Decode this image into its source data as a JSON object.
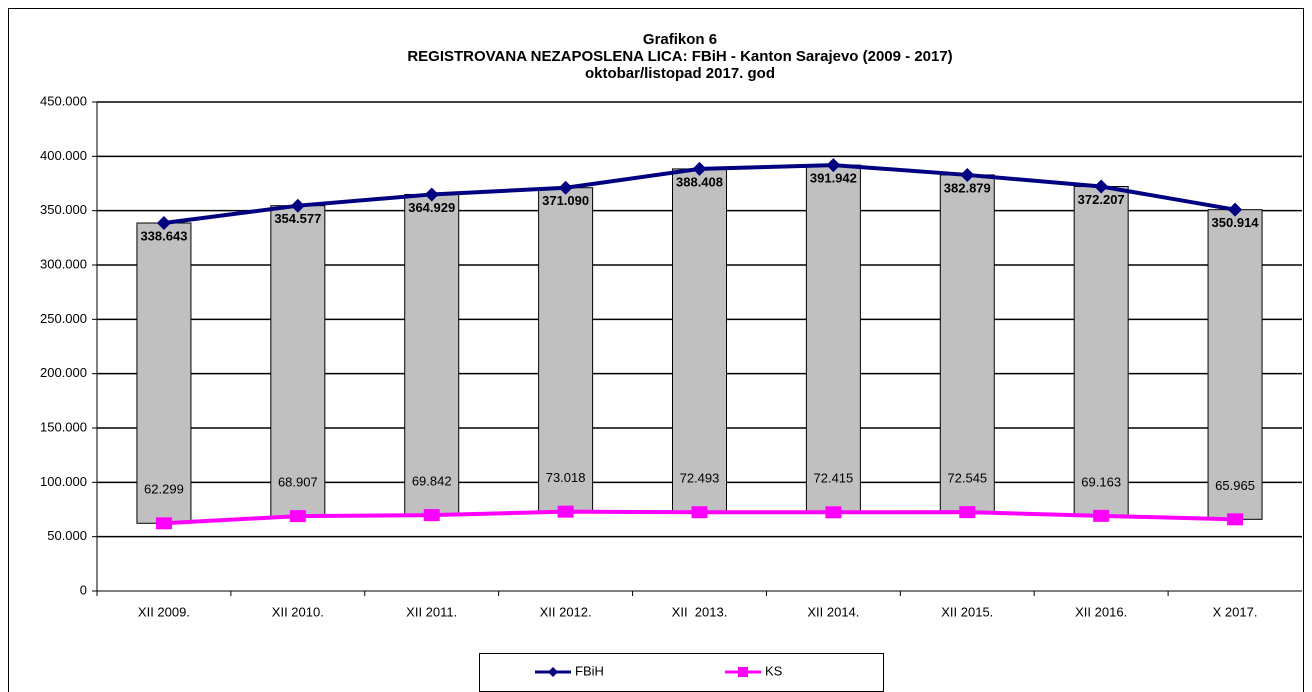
{
  "chart_data": {
    "type": "line",
    "title": [
      "Grafikon 6",
      "REGISTROVANA NEZAPOSLENA LICA: FBiH - Kanton Sarajevo (2009 - 2017)",
      "oktobar/listopad 2017. god"
    ],
    "categories": [
      "XII 2009.",
      "XII 2010.",
      "XII 2011.",
      "XII 2012.",
      "XII  2013.",
      "XII 2014.",
      "XII 2015.",
      "XII 2016.",
      "X 2017."
    ],
    "series": [
      {
        "name": "FBiH",
        "color": "#000080",
        "values": [
          338643,
          354577,
          364929,
          371090,
          388408,
          391942,
          382879,
          372207,
          350914
        ],
        "value_labels": [
          "338.643",
          "354.577",
          "364.929",
          "371.090",
          "388.408",
          "391.942",
          "382.879",
          "372.207",
          "350.914"
        ]
      },
      {
        "name": "KS",
        "color": "#ff00ff",
        "values": [
          62299,
          68907,
          69842,
          73018,
          72493,
          72415,
          72545,
          69163,
          65965
        ],
        "value_labels": [
          "62.299",
          "68.907",
          "69.842",
          "73.018",
          "72.493",
          "72.415",
          "72.545",
          "69.163",
          "65.965"
        ]
      }
    ],
    "ylim": [
      0,
      450000
    ],
    "yticks": [
      0,
      {
        "value": 50000,
        "label": "50.000"
      },
      {
        "value": 100000,
        "label": "100.000"
      },
      {
        "value": 150000,
        "label": "150.000"
      },
      {
        "value": 200000,
        "label": "200.000"
      },
      {
        "value": 250000,
        "label": "250.000"
      },
      {
        "value": 300000,
        "label": "300.000"
      },
      {
        "value": 350000,
        "label": "350.000"
      },
      {
        "value": 400000,
        "label": "400.000"
      },
      {
        "value": 450000,
        "label": "450.000"
      }
    ],
    "grid": true,
    "legend": "bottom"
  }
}
